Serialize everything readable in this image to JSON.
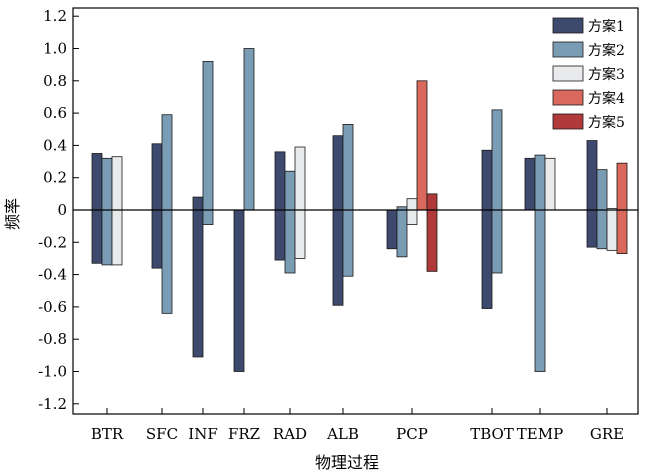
{
  "chart_data": {
    "type": "bar",
    "xlabel": "物理过程",
    "ylabel": "频率",
    "ylim": [
      -1.25,
      1.25
    ],
    "yticks": [
      1.2,
      1.0,
      0.8,
      0.6,
      0.4,
      0.2,
      0,
      -0.2,
      -0.4,
      -0.6,
      -0.8,
      -1.0,
      -1.2
    ],
    "ytick_labels": [
      "1.2",
      "1.0",
      "0.8",
      "0.6",
      "0.4",
      "0.2",
      "0",
      "-0.2",
      "-0.4",
      "-0.6",
      "-0.8",
      "-1.0",
      "-1.2"
    ],
    "categories": [
      "BTR",
      "SFC",
      "INF",
      "FRZ",
      "RAD",
      "ALB",
      "PCP",
      "TBOT",
      "TEMP",
      "GRE"
    ],
    "legend_position": "top-right",
    "series": [
      {
        "name": "方案1",
        "color": "#3e4a6d",
        "pos": [
          0.35,
          0.41,
          0.08,
          0,
          0.36,
          0.46,
          0,
          0.37,
          0.32,
          0.43
        ],
        "neg": [
          -0.33,
          -0.36,
          -0.91,
          -1.0,
          -0.31,
          -0.59,
          -0.24,
          -0.61,
          0,
          -0.23
        ]
      },
      {
        "name": "方案2",
        "color": "#7b9cb5",
        "pos": [
          0.32,
          0.59,
          0.92,
          1.0,
          0.24,
          0.53,
          0.02,
          0.62,
          0.34,
          0.25
        ],
        "neg": [
          -0.34,
          -0.64,
          -0.09,
          0,
          -0.39,
          -0.41,
          -0.29,
          -0.39,
          -1.0,
          -0.24
        ]
      },
      {
        "name": "方案3",
        "color": "#e8eaec",
        "pos": [
          0.33,
          null,
          null,
          null,
          0.39,
          null,
          0.07,
          null,
          0.32,
          0.01
        ],
        "neg": [
          -0.34,
          null,
          null,
          null,
          -0.3,
          null,
          -0.09,
          null,
          0,
          -0.25
        ]
      },
      {
        "name": "方案4",
        "color": "#d9695c",
        "pos": [
          null,
          null,
          null,
          null,
          null,
          null,
          0.8,
          null,
          null,
          0.29
        ],
        "neg": [
          null,
          null,
          null,
          null,
          null,
          null,
          0,
          null,
          null,
          -0.27
        ]
      },
      {
        "name": "方案5",
        "color": "#b03a3a",
        "pos": [
          null,
          null,
          null,
          null,
          null,
          null,
          0.1,
          null,
          null,
          null
        ],
        "neg": [
          null,
          null,
          null,
          null,
          null,
          null,
          -0.38,
          null,
          null,
          null
        ]
      }
    ]
  }
}
